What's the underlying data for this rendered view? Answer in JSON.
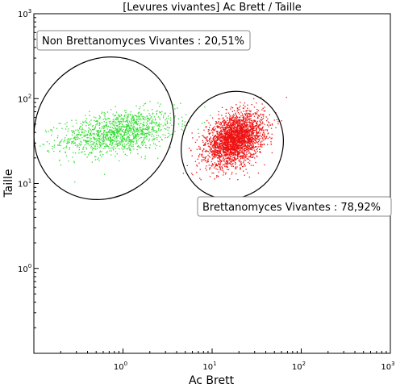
{
  "chart_data": {
    "type": "scatter",
    "title": "[Levures vivantes] Ac Brett / Taille",
    "xlabel": "Ac Brett",
    "ylabel": "Taille",
    "x_scale": "log",
    "y_scale": "log",
    "xlim": [
      0.1,
      1000
    ],
    "ylim": [
      0.1,
      1000
    ],
    "x_ticks": [
      {
        "base": "10",
        "exp": "0",
        "value": 1
      },
      {
        "base": "10",
        "exp": "1",
        "value": 10
      },
      {
        "base": "10",
        "exp": "2",
        "value": 100
      },
      {
        "base": "10",
        "exp": "3",
        "value": 1000
      }
    ],
    "y_ticks": [
      {
        "base": "10",
        "exp": "0",
        "value": 1
      },
      {
        "base": "10",
        "exp": "1",
        "value": 10
      },
      {
        "base": "10",
        "exp": "2",
        "value": 100
      },
      {
        "base": "10",
        "exp": "3",
        "value": 1000
      }
    ],
    "grid": false,
    "gates": [
      {
        "label": "Non Brettanomyces Vivantes : 20,51%",
        "center": [
          0.55,
          40
        ],
        "color": "#000000"
      },
      {
        "label": "Brettanomyces Vivantes : 78,92%",
        "center": [
          18,
          35
        ],
        "color": "#000000"
      }
    ],
    "series": [
      {
        "color": "#33dd33",
        "center": [
          0.9,
          40
        ],
        "spread_log": [
          0.32,
          0.13
        ],
        "count": 1300,
        "percent": 20.51
      },
      {
        "color": "#ee1111",
        "center": [
          18,
          33
        ],
        "spread_log": [
          0.16,
          0.15
        ],
        "count": 2800,
        "percent": 78.92
      }
    ]
  }
}
